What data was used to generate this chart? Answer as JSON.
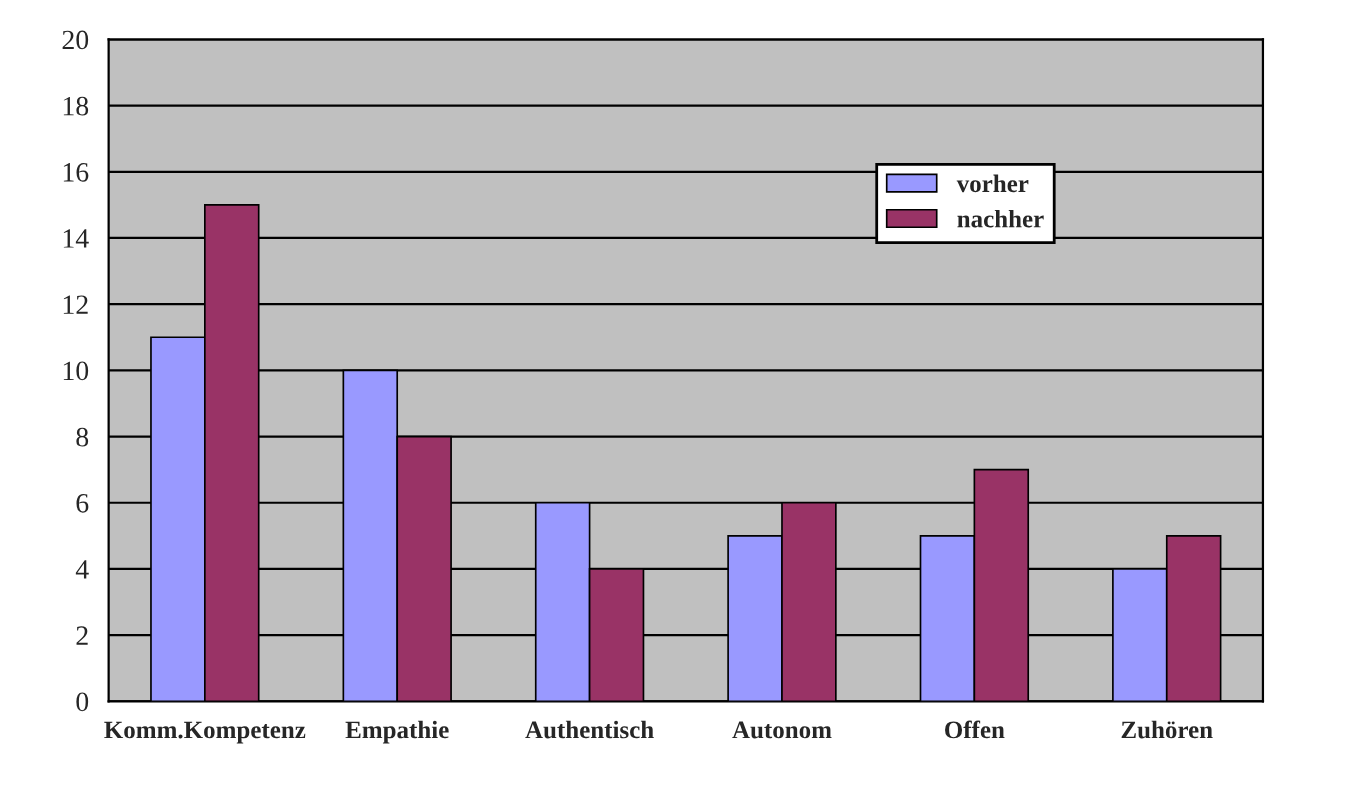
{
  "chart_data": {
    "type": "bar",
    "categories": [
      "Komm.Kompetenz",
      "Empathie",
      "Authentisch",
      "Autonom",
      "Offen",
      "Zuhören"
    ],
    "series": [
      {
        "name": "vorher",
        "color": "#9999ff",
        "values": [
          11,
          10,
          6,
          5,
          5,
          4
        ]
      },
      {
        "name": "nachher",
        "color": "#993366",
        "values": [
          15,
          8,
          4,
          6,
          7,
          5
        ]
      }
    ],
    "ylim": [
      0,
      20
    ],
    "yticks": [
      0,
      2,
      4,
      6,
      8,
      10,
      12,
      14,
      16,
      18,
      20
    ],
    "grid": "y",
    "legend": "top right"
  }
}
